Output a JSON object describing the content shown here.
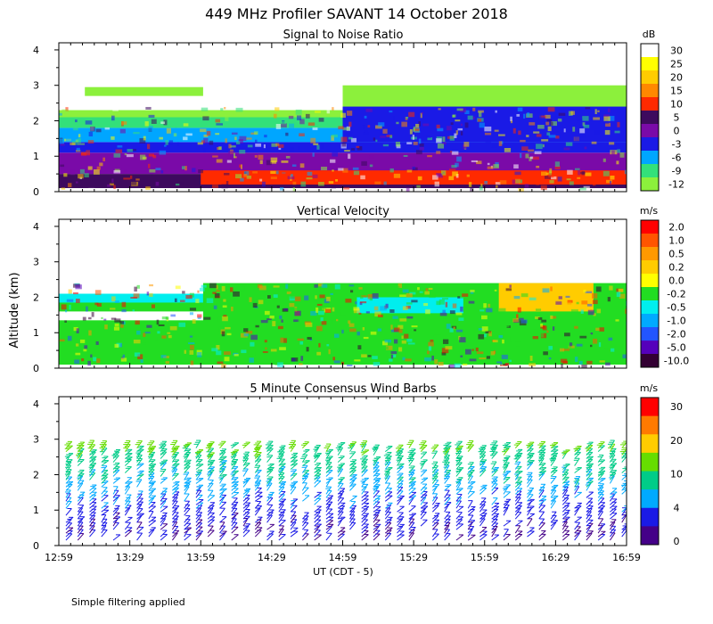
{
  "figure": {
    "title": "449 MHz Profiler SAVANT 14 October 2018",
    "footnote": "Simple filtering applied",
    "xlabel": "UT  (CDT - 5)",
    "ylabel": "Altitude (km)"
  },
  "chart_data": [
    {
      "type": "heatmap",
      "title": "Signal to Noise Ratio",
      "colorbar_unit": "dB",
      "colorbar_labels": [
        "30",
        "25",
        "20",
        "15",
        "10",
        "5",
        "0",
        "-3",
        "-6",
        "-9",
        "-12"
      ],
      "colorbar_colors": [
        "#ffffff",
        "#ffff00",
        "#ffcc00",
        "#ff8800",
        "#ff2a00",
        "#3d0a5e",
        "#7a0aa8",
        "#1a1ae6",
        "#00a6ff",
        "#33e07a",
        "#8cf03c"
      ],
      "x_ticks": [
        "12:59",
        "13:29",
        "13:59",
        "14:29",
        "14:59",
        "15:29",
        "15:59",
        "16:29",
        "16:59"
      ],
      "x_range": [
        "12:59",
        "16:59"
      ],
      "y_ticks": [
        "0",
        "1",
        "2",
        "3",
        "4"
      ],
      "y_range": [
        0,
        4.2
      ],
      "y_unit": "km",
      "profile": [
        {
          "y0": 0.1,
          "y1": 0.5,
          "color": "#3d0a5e"
        },
        {
          "y0": 0.5,
          "y1": 1.1,
          "color": "#7a0aa8"
        },
        {
          "y0": 1.1,
          "y1": 1.4,
          "color": "#1a1ae6"
        },
        {
          "y0": 1.4,
          "y1": 1.8,
          "color": "#00a6ff"
        },
        {
          "y0": 1.8,
          "y1": 2.1,
          "color": "#33e07a"
        },
        {
          "y0": 2.1,
          "y1": 2.3,
          "color": "#8cf03c"
        }
      ],
      "features": [
        {
          "x0": "14:59",
          "x1": "16:59",
          "y0": 2.3,
          "y1": 3.0,
          "color": "#8cf03c"
        },
        {
          "x0": "13:10",
          "x1": "14:00",
          "y0": 2.7,
          "y1": 2.95,
          "color": "#8cf03c"
        },
        {
          "x0": "14:59",
          "x1": "16:59",
          "y0": 1.4,
          "y1": 2.4,
          "color": "#1a1ae6"
        },
        {
          "x0": "13:59",
          "x1": "16:59",
          "y0": 0.2,
          "y1": 0.6,
          "color": "#ff2a00"
        }
      ]
    },
    {
      "type": "heatmap",
      "title": "Vertical Velocity",
      "colorbar_unit": "m/s",
      "colorbar_labels": [
        "2.0",
        "1.0",
        "0.5",
        "0.2",
        "0.0",
        "-0.2",
        "-0.5",
        "-1.0",
        "-2.0",
        "-5.0",
        "-10.0"
      ],
      "colorbar_colors": [
        "#ff0000",
        "#ff5500",
        "#ff9900",
        "#ffcc00",
        "#ffff00",
        "#22dd22",
        "#00eeee",
        "#00aaff",
        "#2255ff",
        "#5500bb",
        "#330033"
      ],
      "x_ticks": [
        "12:59",
        "13:29",
        "13:59",
        "14:29",
        "14:59",
        "15:29",
        "15:59",
        "16:29",
        "16:59"
      ],
      "x_range": [
        "12:59",
        "16:59"
      ],
      "y_ticks": [
        "0",
        "1",
        "2",
        "3",
        "4"
      ],
      "y_range": [
        0,
        4.2
      ],
      "y_unit": "km",
      "profile": [
        {
          "y0": 0.1,
          "y1": 1.35,
          "color": "#22dd22"
        },
        {
          "y0": 1.6,
          "y1": 2.1,
          "color": "#22dd22"
        }
      ],
      "features": [
        {
          "x0": "12:59",
          "x1": "14:00",
          "y0": 1.85,
          "y1": 2.1,
          "color": "#00eeee"
        },
        {
          "x0": "14:00",
          "x1": "16:59",
          "y0": 1.3,
          "y1": 2.4,
          "color": "#22dd22"
        },
        {
          "x0": "15:05",
          "x1": "15:50",
          "y0": 1.55,
          "y1": 2.0,
          "color": "#00eeee"
        },
        {
          "x0": "16:05",
          "x1": "16:45",
          "y0": 1.6,
          "y1": 2.4,
          "color": "#ffcc00"
        }
      ]
    },
    {
      "type": "wind-barb",
      "title": "5 Minute Consensus Wind Barbs",
      "colorbar_unit": "m/s",
      "colorbar_labels": [
        "30",
        "20",
        "10",
        "4",
        "0"
      ],
      "colorbar_colors": [
        "#ff0000",
        "#ff7a00",
        "#ffcc00",
        "#66dd00",
        "#00cc88",
        "#00aaff",
        "#1a1ae6",
        "#440088"
      ],
      "x_ticks": [
        "12:59",
        "13:29",
        "13:59",
        "14:29",
        "14:59",
        "15:29",
        "15:59",
        "16:29",
        "16:59"
      ],
      "x_range": [
        "12:59",
        "16:59"
      ],
      "y_ticks": [
        "0",
        "1",
        "2",
        "3",
        "4"
      ],
      "y_range": [
        0,
        4.2
      ],
      "y_unit": "km",
      "interval_minutes": 5,
      "max_altitude_km": 2.8,
      "speed_by_altitude": [
        {
          "y": 0.2,
          "speed": 2
        },
        {
          "y": 0.8,
          "speed": 4
        },
        {
          "y": 1.3,
          "speed": 7
        },
        {
          "y": 1.8,
          "speed": 11
        },
        {
          "y": 2.4,
          "speed": 14
        },
        {
          "y": 2.8,
          "speed": 17
        }
      ]
    }
  ]
}
